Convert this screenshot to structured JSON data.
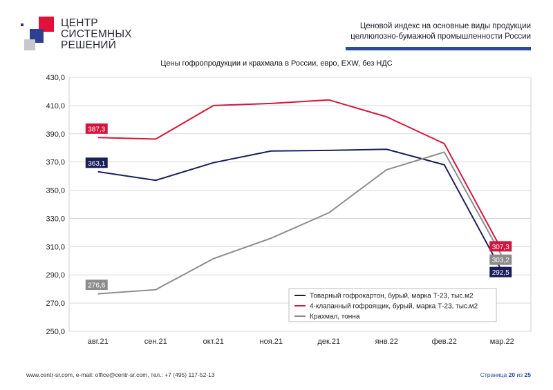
{
  "header": {
    "logo_lines": [
      "ЦЕНТР",
      "СИСТЕМНЫХ",
      "РЕШЕНИЙ"
    ],
    "title_line1": "Ценовой индекс  на  основные виды продукции",
    "title_line2": "целлюлозно-бумажной промышленности России"
  },
  "footer": {
    "contacts": "www.centr-sr.com, e-mail: office@centr-sr.com, тел.: +7 (495) 117-52-13",
    "page_word": "Страница",
    "page_current": "20",
    "page_of": "из",
    "page_total": "25"
  },
  "chart_data": {
    "type": "line",
    "title": "Цены гофропродукции и крахмала в России, евро, EXW, без НДС",
    "categories": [
      "авг.21",
      "сен.21",
      "окт.21",
      "ноя.21",
      "дек.21",
      "янв.22",
      "фев.22",
      "мар.22"
    ],
    "ylim": [
      250,
      430
    ],
    "yticks": [
      "250,0",
      "270,0",
      "290,0",
      "310,0",
      "330,0",
      "350,0",
      "370,0",
      "390,0",
      "410,0",
      "430,0"
    ],
    "grid": true,
    "legend_position": "bottom-right",
    "series": [
      {
        "name": "Товарный гофрокартон, бурый, марка Т-23, тыс.м2",
        "color": "#1a1f5a",
        "values": [
          363.1,
          357.0,
          369.5,
          377.8,
          378.2,
          379.0,
          368.0,
          292.5
        ],
        "labels": [
          "363,1",
          "",
          "",
          "",
          "",
          "",
          "",
          "292,5"
        ]
      },
      {
        "name": "4-клапанный гофроящик, бурый, марка Т-23, тыс.м2",
        "color": "#d4163c",
        "values": [
          387.3,
          386.2,
          410.0,
          411.5,
          414.0,
          402.0,
          383.0,
          307.3
        ],
        "labels": [
          "387,3",
          "",
          "",
          "",
          "",
          "",
          "",
          "307,3"
        ]
      },
      {
        "name": "Крахмал, тонна",
        "color": "#8c8c8c",
        "values": [
          276.6,
          279.5,
          301.5,
          316.0,
          334.0,
          364.5,
          377.0,
          303.2
        ],
        "labels": [
          "276,6",
          "",
          "",
          "",
          "",
          "",
          "",
          "303,2"
        ]
      }
    ]
  }
}
